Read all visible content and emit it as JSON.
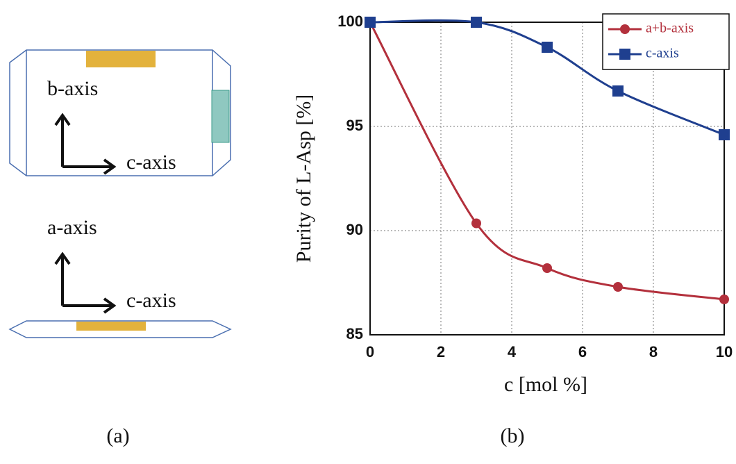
{
  "diagram": {
    "labels": [
      "b-axis",
      "c-axis",
      "a-axis",
      "c-axis"
    ]
  },
  "panel_labels": [
    "(a)",
    "(b)"
  ],
  "chart_data": {
    "type": "line",
    "xlabel": "c [mol %]",
    "ylabel": "Purity of L-Asp [%]",
    "x": [
      0,
      3,
      5,
      7,
      10
    ],
    "series": [
      {
        "name": "a+b-axis",
        "color": "#b3303c",
        "marker": "circle",
        "values": [
          100,
          90.35,
          88.2,
          87.3,
          86.7
        ]
      },
      {
        "name": "c-axis",
        "color": "#1f3f8f",
        "marker": "square",
        "values": [
          100,
          100,
          98.8,
          96.7,
          94.6
        ]
      }
    ],
    "xlim": [
      0,
      10
    ],
    "xticks": [
      0,
      2,
      4,
      6,
      8,
      10
    ],
    "ylim": [
      85,
      100
    ],
    "yticks": [
      85,
      90,
      95,
      100
    ],
    "grid": true,
    "legend": "upper right"
  }
}
